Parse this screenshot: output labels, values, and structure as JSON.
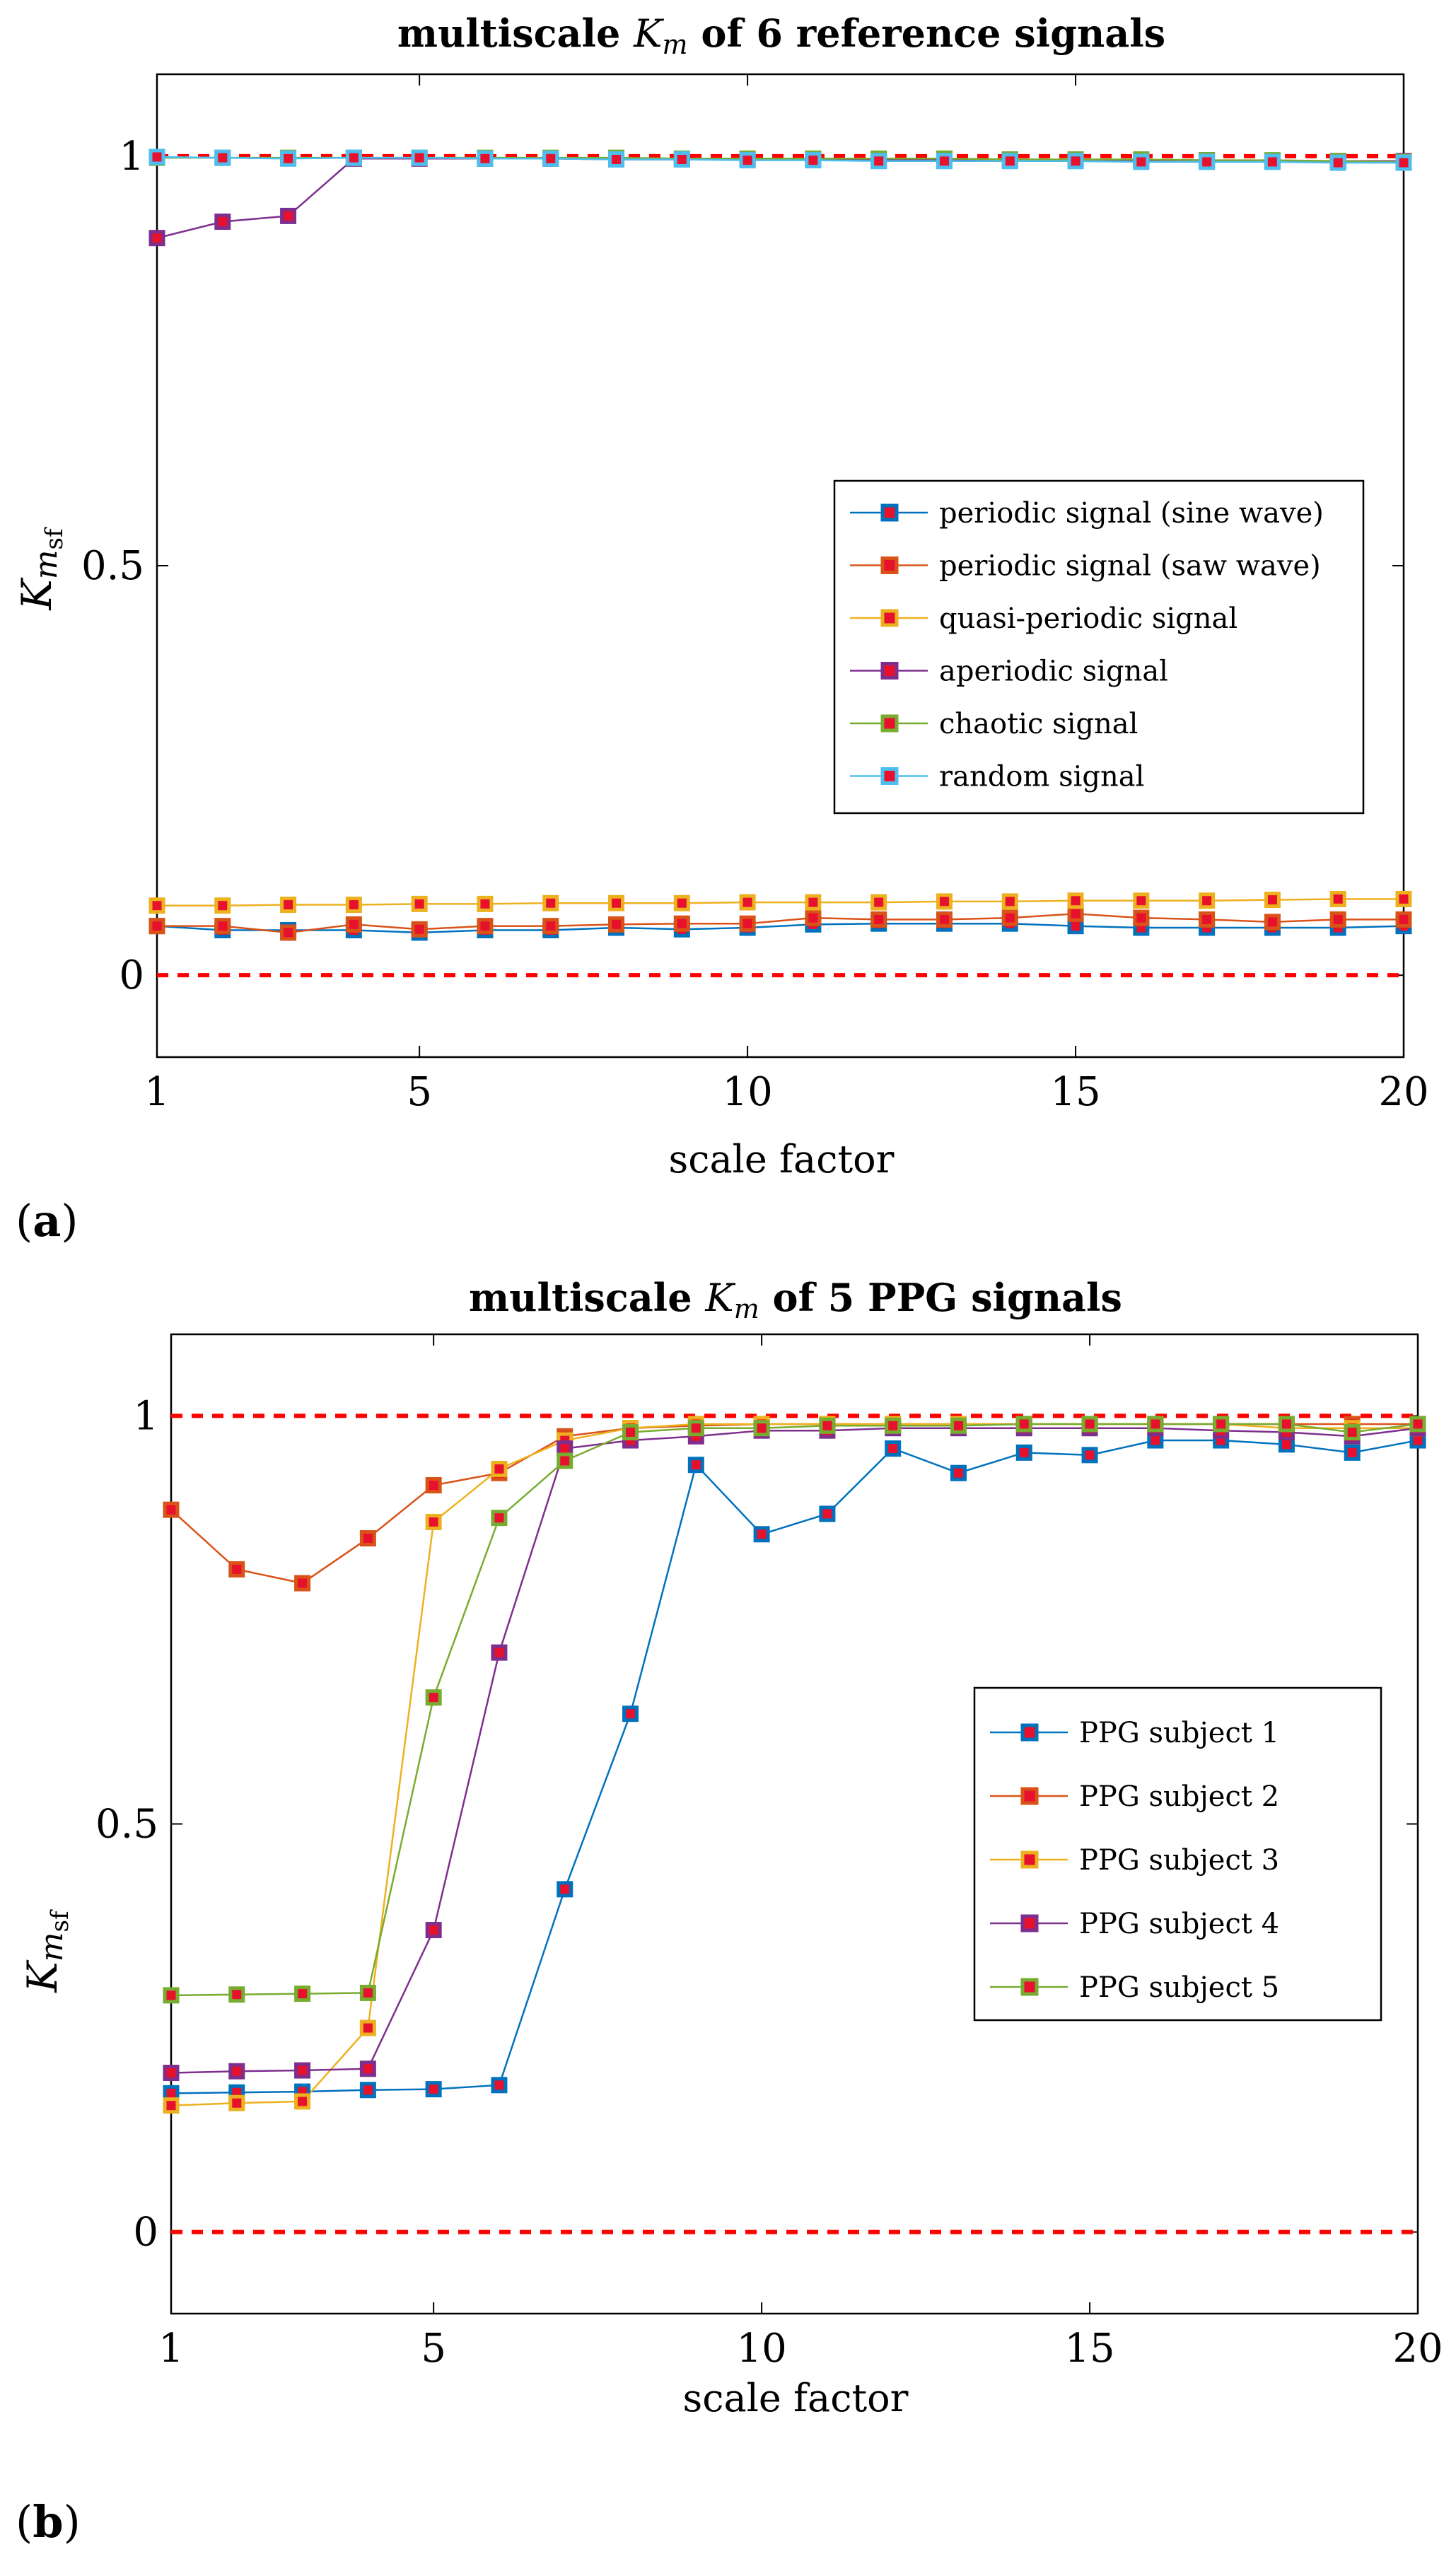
{
  "panels": [
    {
      "label_open": "(",
      "label_letter": "a",
      "label_close": ")"
    },
    {
      "label_open": "(",
      "label_letter": "b",
      "label_close": ")"
    }
  ],
  "chart_data": [
    {
      "type": "line",
      "title": "multiscale Km of 6 reference signals",
      "title_parts": {
        "prefix": "multiscale ",
        "k": "K",
        "m": "m",
        "suffix": " of 6 reference signals"
      },
      "xlabel": "scale factor",
      "ylabel_parts": {
        "k": "K",
        "m": "m",
        "sub": "sf"
      },
      "xlim": [
        1,
        20
      ],
      "ylim": [
        -0.1,
        1.1
      ],
      "xticks": [
        1,
        5,
        10,
        15,
        20
      ],
      "yticks": [
        0,
        0.5,
        1
      ],
      "ytick_labels": [
        "0",
        "0.5",
        "1"
      ],
      "reference_lines": [
        0,
        1
      ],
      "reference_line_color": "#ff0000",
      "legend_position": "right-center",
      "x": [
        1,
        2,
        3,
        4,
        5,
        6,
        7,
        8,
        9,
        10,
        11,
        12,
        13,
        14,
        15,
        16,
        17,
        18,
        19,
        20
      ],
      "series": [
        {
          "name": "periodic signal (sine wave)",
          "color": "#0072bd",
          "marker_edge": "#0072bd",
          "values": [
            0.06,
            0.055,
            0.055,
            0.055,
            0.052,
            0.055,
            0.055,
            0.058,
            0.056,
            0.058,
            0.062,
            0.063,
            0.063,
            0.063,
            0.06,
            0.058,
            0.058,
            0.058,
            0.058,
            0.06
          ]
        },
        {
          "name": "periodic signal (saw wave)",
          "color": "#d95319",
          "marker_edge": "#d95319",
          "values": [
            0.06,
            0.06,
            0.052,
            0.062,
            0.056,
            0.06,
            0.06,
            0.062,
            0.063,
            0.063,
            0.07,
            0.068,
            0.068,
            0.07,
            0.075,
            0.07,
            0.068,
            0.065,
            0.068,
            0.068
          ]
        },
        {
          "name": "quasi-periodic signal",
          "color": "#edb120",
          "marker_edge": "#edb120",
          "values": [
            0.085,
            0.085,
            0.086,
            0.086,
            0.087,
            0.087,
            0.088,
            0.088,
            0.088,
            0.089,
            0.089,
            0.089,
            0.09,
            0.09,
            0.091,
            0.091,
            0.091,
            0.092,
            0.093,
            0.093
          ]
        },
        {
          "name": "aperiodic signal",
          "color": "#7e2f8e",
          "marker_edge": "#7e2f8e",
          "values": [
            0.9,
            0.92,
            0.927,
            0.997,
            0.997,
            0.997,
            0.997,
            0.996,
            0.996,
            0.996,
            0.996,
            0.995,
            0.995,
            0.995,
            0.995,
            0.995,
            0.995,
            0.994,
            0.994,
            0.994
          ]
        },
        {
          "name": "chaotic signal",
          "color": "#77ac30",
          "marker_edge": "#77ac30",
          "values": [
            0.998,
            0.998,
            0.998,
            0.998,
            0.998,
            0.998,
            0.998,
            0.998,
            0.997,
            0.997,
            0.997,
            0.997,
            0.997,
            0.996,
            0.996,
            0.996,
            0.995,
            0.995,
            0.994,
            0.993
          ]
        },
        {
          "name": "random signal",
          "color": "#4dbeee",
          "marker_edge": "#4dbeee",
          "values": [
            0.999,
            0.998,
            0.997,
            0.998,
            0.998,
            0.997,
            0.997,
            0.996,
            0.996,
            0.995,
            0.995,
            0.994,
            0.994,
            0.994,
            0.994,
            0.993,
            0.993,
            0.993,
            0.992,
            0.992
          ]
        }
      ]
    },
    {
      "type": "line",
      "title": "multiscale Km of 5 PPG signals",
      "title_parts": {
        "prefix": "multiscale ",
        "k": "K",
        "m": "m",
        "suffix": " of 5 PPG signals"
      },
      "xlabel": "scale factor",
      "ylabel_parts": {
        "k": "K",
        "m": "m",
        "sub": "sf"
      },
      "xlim": [
        1,
        20
      ],
      "ylim": [
        -0.1,
        1.1
      ],
      "xticks": [
        1,
        5,
        10,
        15,
        20
      ],
      "yticks": [
        0,
        0.5,
        1
      ],
      "ytick_labels": [
        "0",
        "0.5",
        "1"
      ],
      "reference_lines": [
        0,
        1
      ],
      "reference_line_color": "#ff0000",
      "legend_position": "right-center",
      "x": [
        1,
        2,
        3,
        4,
        5,
        6,
        7,
        8,
        9,
        10,
        11,
        12,
        13,
        14,
        15,
        16,
        17,
        18,
        19,
        20
      ],
      "series": [
        {
          "name": "PPG subject 1",
          "color": "#0072bd",
          "marker_edge": "#0072bd",
          "values": [
            0.17,
            0.171,
            0.172,
            0.174,
            0.175,
            0.18,
            0.42,
            0.635,
            0.94,
            0.855,
            0.88,
            0.96,
            0.93,
            0.955,
            0.952,
            0.97,
            0.97,
            0.965,
            0.955,
            0.97
          ]
        },
        {
          "name": "PPG subject 2",
          "color": "#d95319",
          "marker_edge": "#d95319",
          "values": [
            0.885,
            0.812,
            0.795,
            0.85,
            0.915,
            0.93,
            0.975,
            0.985,
            0.988,
            0.99,
            0.99,
            0.99,
            0.99,
            0.99,
            0.99,
            0.99,
            0.99,
            0.99,
            0.99,
            0.99
          ]
        },
        {
          "name": "PPG subject 3",
          "color": "#edb120",
          "marker_edge": "#edb120",
          "values": [
            0.155,
            0.158,
            0.16,
            0.25,
            0.87,
            0.935,
            0.97,
            0.985,
            0.99,
            0.99,
            0.99,
            0.99,
            0.99,
            0.99,
            0.99,
            0.99,
            0.99,
            0.985,
            0.985,
            0.985
          ]
        },
        {
          "name": "PPG subject 4",
          "color": "#7e2f8e",
          "marker_edge": "#7e2f8e",
          "values": [
            0.195,
            0.197,
            0.198,
            0.2,
            0.37,
            0.71,
            0.96,
            0.97,
            0.975,
            0.982,
            0.982,
            0.985,
            0.985,
            0.985,
            0.985,
            0.985,
            0.982,
            0.98,
            0.975,
            0.985
          ]
        },
        {
          "name": "PPG subject 5",
          "color": "#77ac30",
          "marker_edge": "#77ac30",
          "values": [
            0.29,
            0.291,
            0.292,
            0.293,
            0.655,
            0.875,
            0.945,
            0.98,
            0.985,
            0.985,
            0.988,
            0.988,
            0.988,
            0.99,
            0.99,
            0.99,
            0.99,
            0.99,
            0.98,
            0.99
          ]
        }
      ]
    }
  ]
}
